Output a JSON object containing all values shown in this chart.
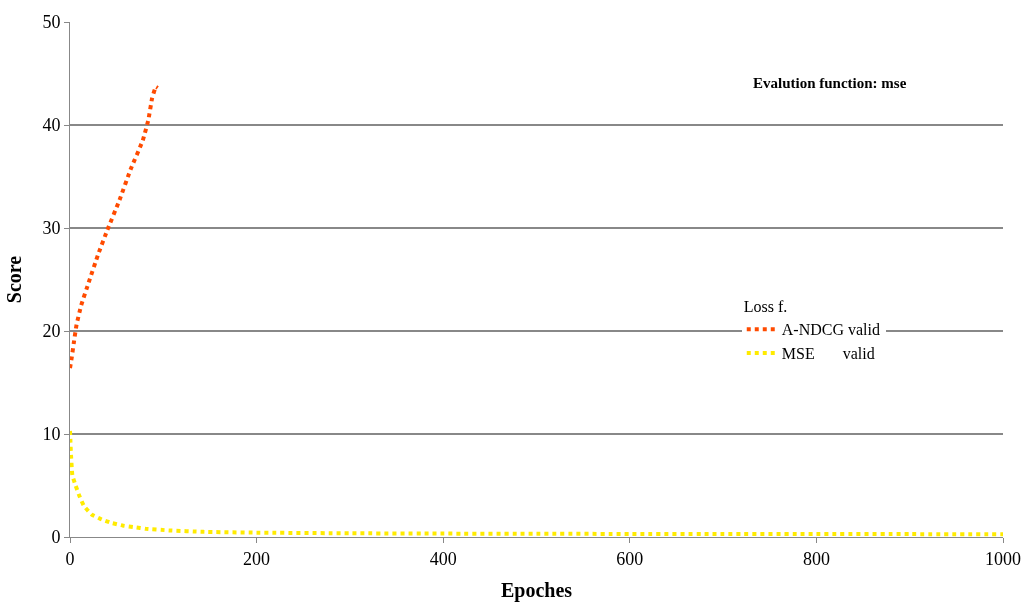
{
  "chart_data": {
    "type": "line",
    "xlabel": "Epoches",
    "ylabel": "Score",
    "legend_title": "Loss f.",
    "annotations": [
      "Evalution function: mse"
    ],
    "series": [
      {
        "name": "A-NDCG valid",
        "color": "#ff4b00",
        "x": [
          0,
          2,
          4,
          7,
          12,
          20,
          30,
          40,
          53,
          65,
          78,
          84,
          88,
          92,
          94
        ],
        "values": [
          16.4,
          17.5,
          18.8,
          20.6,
          22.5,
          24.7,
          27.4,
          29.8,
          32.7,
          35.7,
          38.5,
          40.5,
          42.6,
          43.7,
          43.6
        ]
      },
      {
        "name": "MSE       valid",
        "color": "#ffeb00",
        "x": [
          0,
          0.5,
          1,
          2.5,
          6,
          10,
          15,
          23,
          34,
          45,
          57,
          69,
          81,
          106,
          143,
          200,
          300,
          400,
          500,
          600,
          700,
          800,
          900,
          1000
        ],
        "values": [
          10.3,
          9.2,
          8.1,
          6.0,
          5.0,
          4.0,
          3.0,
          2.2,
          1.7,
          1.35,
          1.1,
          0.95,
          0.8,
          0.64,
          0.5,
          0.42,
          0.36,
          0.33,
          0.31,
          0.3,
          0.29,
          0.28,
          0.28,
          0.27
        ]
      }
    ],
    "xlim": [
      0,
      1000
    ],
    "xticks": [
      0,
      200,
      400,
      600,
      800,
      1000
    ],
    "ylim": [
      0,
      50
    ],
    "yticks": [
      0,
      10,
      20,
      30,
      40,
      50
    ],
    "grid": "y",
    "legend": "right",
    "line_style": "dotted",
    "marker": "none"
  }
}
